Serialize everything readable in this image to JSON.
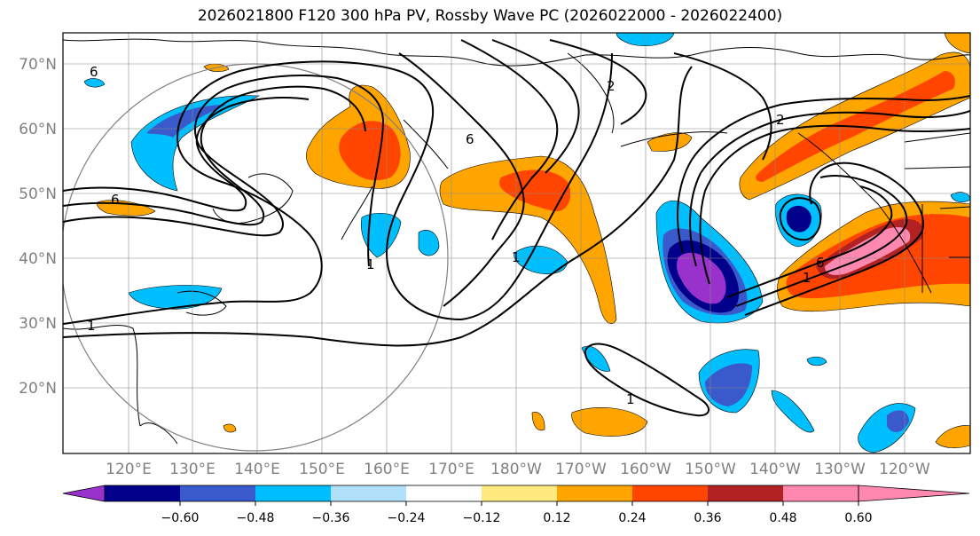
{
  "title": "2026021800 F120 300 hPa PV, Rossby Wave PC (2026022000 - 2026022400)",
  "lat_labels": [
    "70°N",
    "60°N",
    "50°N",
    "40°N",
    "30°N",
    "20°N"
  ],
  "lon_labels": [
    "120°E",
    "130°E",
    "140°E",
    "150°E",
    "160°E",
    "170°E",
    "180°W",
    "170°W",
    "160°W",
    "150°W",
    "140°W",
    "130°W",
    "120°W"
  ],
  "contour_labels": [
    "6",
    "6",
    "1",
    "1",
    "1",
    "6",
    "2",
    "2",
    "6",
    "1",
    "1"
  ],
  "colorbar": {
    "ticks": [
      "−0.60",
      "−0.48",
      "−0.36",
      "−0.24",
      "−0.12",
      "0.12",
      "0.24",
      "0.36",
      "0.48",
      "0.60"
    ],
    "colors": [
      "#9932cc",
      "#00008b",
      "#3a5acb",
      "#00bfff",
      "#b0e0fa",
      "#ffffff",
      "#ffeb80",
      "#ffa500",
      "#ff4500",
      "#b22222",
      "#ff88b0"
    ]
  }
}
